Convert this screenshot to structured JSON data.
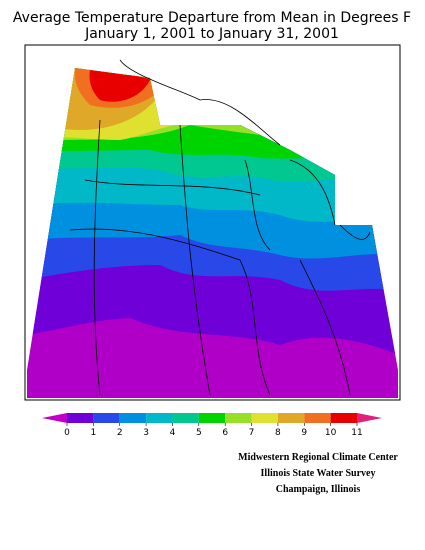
{
  "title": [
    "Average Temperature Departure from Mean in Degrees F",
    "January 1, 2001 to January 31, 2001"
  ],
  "legend": {
    "ticks": [
      0,
      1,
      2,
      3,
      4,
      5,
      6,
      7,
      8,
      9,
      10,
      11
    ],
    "colors": [
      "#c000c8",
      "#7000d8",
      "#2848e8",
      "#0090e0",
      "#00b8c8",
      "#00c890",
      "#00d400",
      "#98e028",
      "#e0e030",
      "#e0a828",
      "#f07020",
      "#e80000",
      "#e0207a"
    ]
  },
  "credits": [
    "Midwestern Regional Climate Center",
    "Illinois State Water Survey",
    "Champaign, Illinois"
  ]
}
